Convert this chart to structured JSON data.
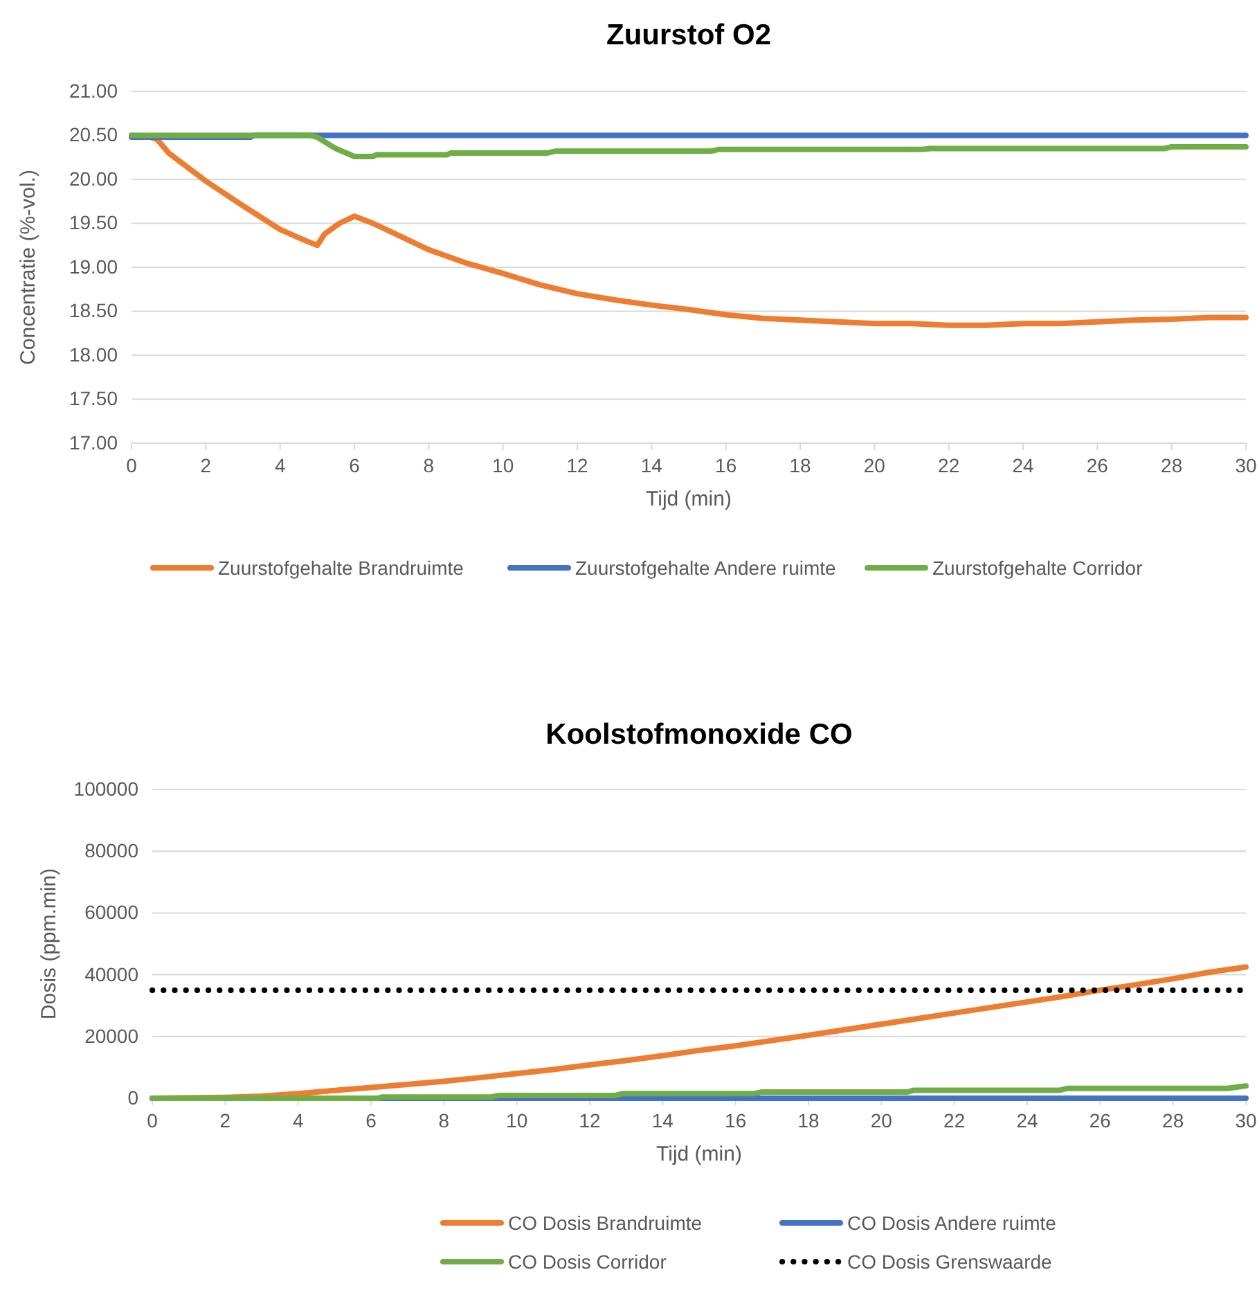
{
  "chart_data": [
    {
      "type": "line",
      "title": "Zuurstof O2",
      "xlabel": "Tijd (min)",
      "ylabel": "Concentratie (%-vol.)",
      "xlim": [
        0,
        30
      ],
      "xticks": [
        0,
        2,
        4,
        6,
        8,
        10,
        12,
        14,
        16,
        18,
        20,
        22,
        24,
        26,
        28,
        30
      ],
      "ylim": [
        17,
        21
      ],
      "yticks": [
        {
          "value": 17,
          "label": "17.00"
        },
        {
          "value": 17.5,
          "label": "17.50"
        },
        {
          "value": 18,
          "label": "18.00"
        },
        {
          "value": 18.5,
          "label": "18.50"
        },
        {
          "value": 19,
          "label": "19.00"
        },
        {
          "value": 19.5,
          "label": "19.50"
        },
        {
          "value": 20,
          "label": "20.00"
        },
        {
          "value": 20.5,
          "label": "20.50"
        },
        {
          "value": 21,
          "label": "21.00"
        }
      ],
      "grid": "y",
      "legend": "bottom",
      "marker": "none",
      "line_style": "solid",
      "series": [
        {
          "name": "Zuurstofgehalte Brandruimte",
          "color": "#ed7d31",
          "x": [
            0,
            0.5,
            0.7,
            1,
            2,
            3,
            4,
            4.7,
            5,
            5.2,
            5.6,
            6,
            6.5,
            7,
            8,
            9,
            10,
            11,
            12,
            13,
            14,
            15,
            16,
            17,
            18,
            19,
            20,
            21,
            22,
            23,
            24,
            25,
            26,
            27,
            28,
            29,
            30
          ],
          "values": [
            20.5,
            20.48,
            20.45,
            20.3,
            19.98,
            19.7,
            19.43,
            19.3,
            19.25,
            19.38,
            19.5,
            19.58,
            19.5,
            19.4,
            19.2,
            19.05,
            18.93,
            18.8,
            18.7,
            18.63,
            18.57,
            18.52,
            18.46,
            18.42,
            18.4,
            18.38,
            18.36,
            18.36,
            18.34,
            18.34,
            18.36,
            18.36,
            18.38,
            18.4,
            18.41,
            18.43,
            18.43
          ]
        },
        {
          "name": "Zuurstofgehalte Andere ruimte",
          "color": "#4472c4",
          "x": [
            0,
            3.2,
            3.3,
            30
          ],
          "values": [
            20.48,
            20.48,
            20.5,
            20.5
          ]
        },
        {
          "name": "Zuurstofgehalte Corridor",
          "color": "#70ad47",
          "x": [
            0,
            4.8,
            5,
            5.5,
            6,
            6.5,
            6.6,
            8.5,
            8.6,
            11.2,
            11.4,
            15.6,
            15.8,
            21.3,
            21.5,
            27.8,
            28,
            30
          ],
          "values": [
            20.5,
            20.5,
            20.48,
            20.35,
            20.26,
            20.26,
            20.28,
            20.28,
            20.3,
            20.3,
            20.32,
            20.32,
            20.34,
            20.34,
            20.35,
            20.35,
            20.37,
            20.37
          ]
        }
      ]
    },
    {
      "type": "line",
      "title": "Koolstofmonoxide CO",
      "xlabel": "Tijd (min)",
      "ylabel": "Dosis (ppm.min)",
      "xlim": [
        0,
        30
      ],
      "xticks": [
        0,
        2,
        4,
        6,
        8,
        10,
        12,
        14,
        16,
        18,
        20,
        22,
        24,
        26,
        28,
        30
      ],
      "ylim": [
        0,
        100000
      ],
      "yticks": [
        0,
        20000,
        40000,
        60000,
        80000,
        100000
      ],
      "grid": "y",
      "legend": "bottom",
      "marker": "none",
      "series": [
        {
          "name": "CO Dosis Brandruimte",
          "color": "#ed7d31",
          "line_style": "solid",
          "x": [
            0,
            2,
            3,
            4,
            5,
            6,
            7,
            8,
            9,
            10,
            11,
            12,
            13,
            14,
            15,
            16,
            17,
            18,
            19,
            20,
            21,
            22,
            23,
            24,
            25,
            26,
            27,
            28,
            29,
            30
          ],
          "values": [
            0,
            300,
            700,
            1500,
            2500,
            3500,
            4500,
            5500,
            6700,
            8000,
            9300,
            10800,
            12200,
            13800,
            15500,
            17000,
            18700,
            20400,
            22200,
            24000,
            25800,
            27600,
            29400,
            31200,
            33000,
            35000,
            36800,
            38700,
            40800,
            42500
          ]
        },
        {
          "name": "CO Dosis Andere ruimte",
          "color": "#4472c4",
          "line_style": "solid",
          "x": [
            0,
            30
          ],
          "values": [
            0,
            0
          ]
        },
        {
          "name": "CO Dosis Corridor",
          "color": "#70ad47",
          "line_style": "solid",
          "x": [
            0,
            6.2,
            6.3,
            9.3,
            9.5,
            12.7,
            12.9,
            16.5,
            16.7,
            20.7,
            20.9,
            24.9,
            25.1,
            29.5,
            30
          ],
          "values": [
            0,
            0,
            400,
            400,
            900,
            900,
            1500,
            1500,
            2000,
            2000,
            2600,
            2600,
            3200,
            3200,
            4000
          ]
        },
        {
          "name": "CO Dosis Grenswaarde",
          "color": "#000000",
          "line_style": "dotted",
          "x": [
            0,
            30
          ],
          "values": [
            35000,
            35000
          ]
        }
      ]
    }
  ]
}
